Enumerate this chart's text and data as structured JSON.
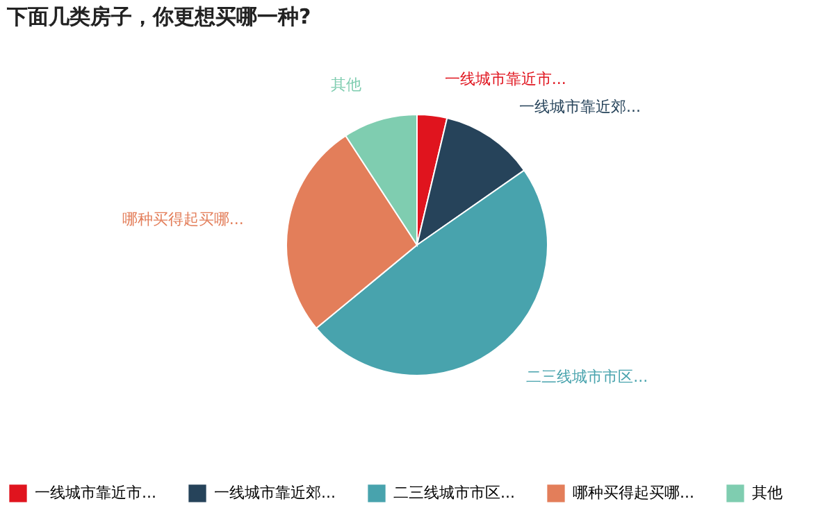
{
  "chart_data": {
    "type": "pie",
    "title": "下面几类房子，你更想买哪一种?",
    "categories": [
      "一线城市靠近市...",
      "一线城市靠近郊...",
      "二三线城市市区...",
      "哪种买得起买哪...",
      "其他"
    ],
    "values": [
      3.7,
      11.6,
      48.7,
      26.8,
      9.2
    ],
    "colors": [
      "#e0141e",
      "#26435a",
      "#48a3ad",
      "#e37e5a",
      "#7fcdb0"
    ],
    "legend": "bottom"
  }
}
